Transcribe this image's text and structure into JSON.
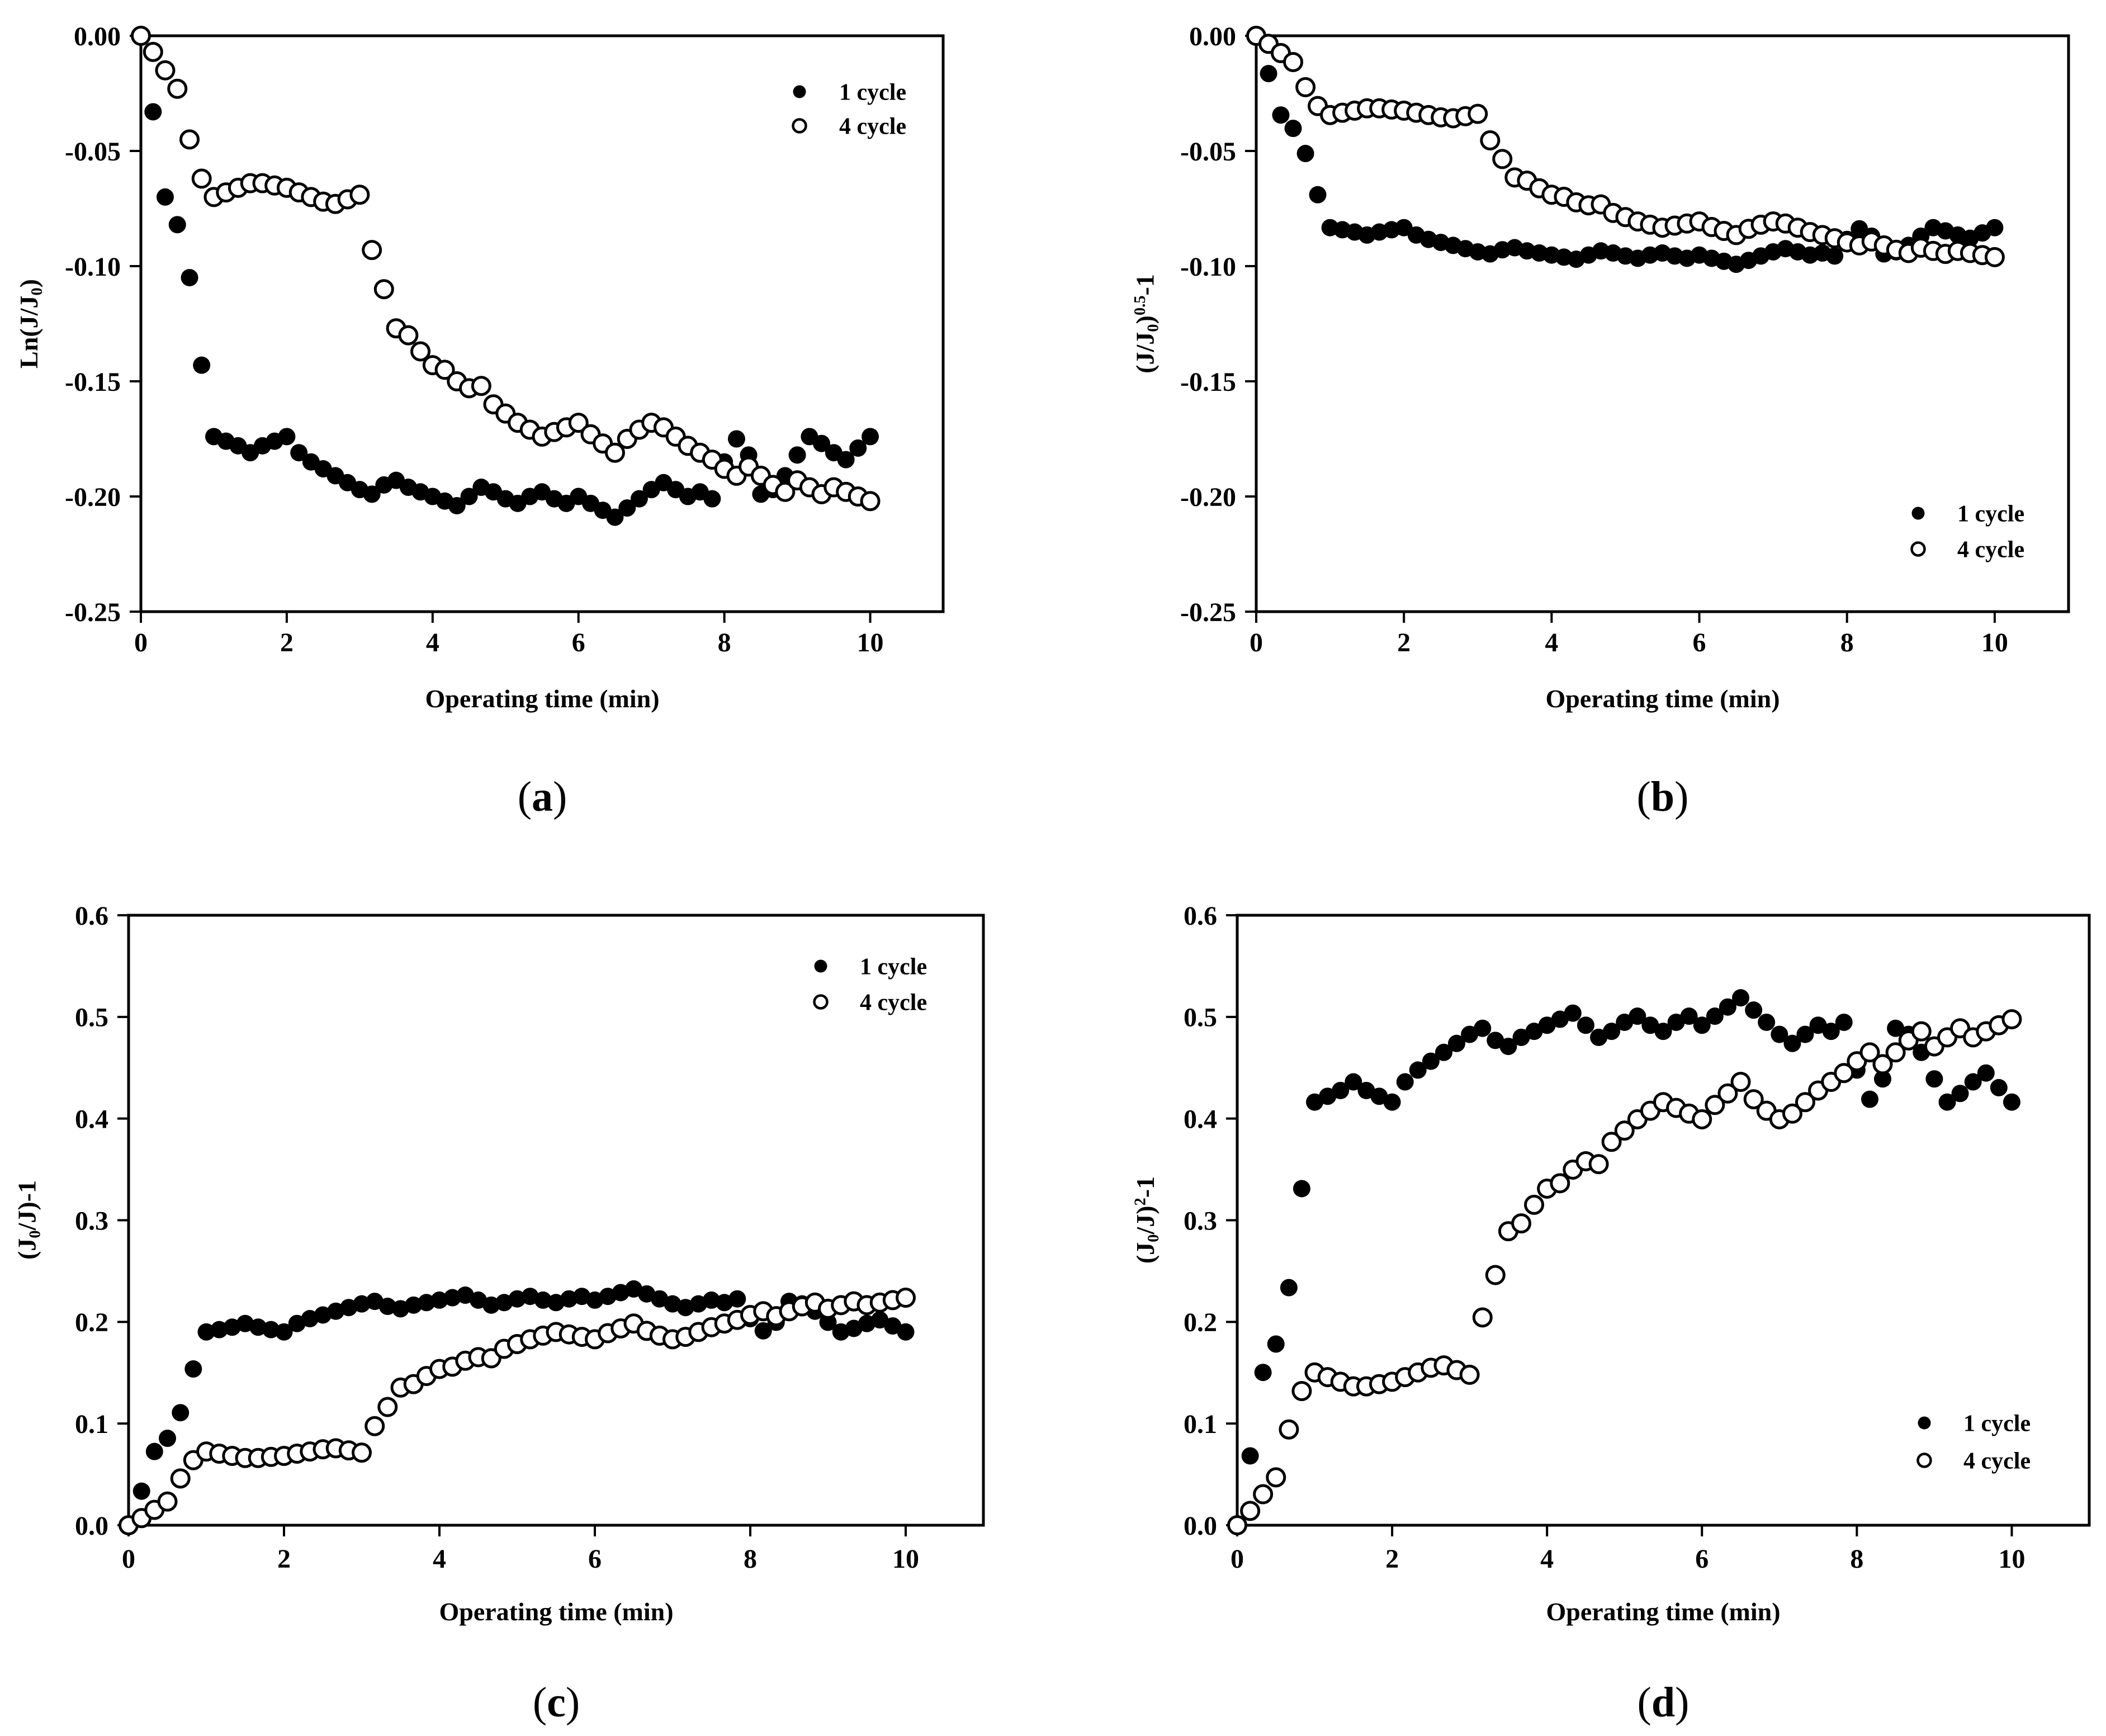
{
  "figure": {
    "colors": {
      "ink": "#000000",
      "paper": "#ffffff"
    },
    "marker_icons": {
      "filled-circle": "●",
      "open-circle": "○"
    }
  },
  "chart_data": [
    {
      "id": "a",
      "type": "scatter",
      "panel_label": {
        "open": "(",
        "char": "a",
        "close": ")"
      },
      "xlabel": "Operating time (min)",
      "ylabel_text": "Ln(J/J0)",
      "ylabel_segments": [
        {
          "k": "t",
          "v": "Ln(J/J"
        },
        {
          "k": "sub",
          "v": "0"
        },
        {
          "k": "t",
          "v": ")"
        }
      ],
      "xlim": [
        0,
        11
      ],
      "ylim": [
        -0.25,
        0
      ],
      "x_tick_labels": [
        "0",
        "2",
        "4",
        "6",
        "8",
        "10"
      ],
      "x_tick_values": [
        0,
        2,
        4,
        6,
        8,
        10
      ],
      "y_tick_labels": [
        "0.00",
        "-0.05",
        "-0.10",
        "-0.15",
        "-0.20",
        "-0.25"
      ],
      "y_tick_values": [
        0,
        -0.05,
        -0.1,
        -0.15,
        -0.2,
        -0.25
      ],
      "grid": false,
      "legend": {
        "position": "top-right",
        "items": [
          {
            "label": "1 cycle",
            "marker": "filled-circle"
          },
          {
            "label": "4 cycle",
            "marker": "open-circle"
          }
        ]
      },
      "x": [
        0,
        0.167,
        0.333,
        0.5,
        0.667,
        0.833,
        1,
        1.167,
        1.333,
        1.5,
        1.667,
        1.833,
        2,
        2.167,
        2.333,
        2.5,
        2.667,
        2.833,
        3,
        3.167,
        3.333,
        3.5,
        3.667,
        3.833,
        4,
        4.167,
        4.333,
        4.5,
        4.667,
        4.833,
        5,
        5.167,
        5.333,
        5.5,
        5.667,
        5.833,
        6,
        6.167,
        6.333,
        6.5,
        6.667,
        6.833,
        7,
        7.167,
        7.333,
        7.5,
        7.667,
        7.833,
        8,
        8.167,
        8.333,
        8.5,
        8.667,
        8.833,
        9,
        9.167,
        9.333,
        9.5,
        9.667,
        9.833,
        10
      ],
      "series": [
        {
          "name": "1 cycle",
          "marker": "filled-circle",
          "y": [
            0,
            -0.033,
            -0.07,
            -0.082,
            -0.105,
            -0.143,
            -0.174,
            -0.176,
            -0.178,
            -0.181,
            -0.178,
            -0.176,
            -0.174,
            -0.181,
            -0.185,
            -0.188,
            -0.191,
            -0.194,
            -0.197,
            -0.199,
            -0.195,
            -0.193,
            -0.196,
            -0.198,
            -0.2,
            -0.202,
            -0.204,
            -0.2,
            -0.196,
            -0.198,
            -0.201,
            -0.203,
            -0.2,
            -0.198,
            -0.201,
            -0.203,
            -0.2,
            -0.203,
            -0.206,
            -0.209,
            -0.205,
            -0.201,
            -0.197,
            -0.194,
            -0.197,
            -0.2,
            -0.198,
            -0.201,
            -0.185,
            -0.175,
            -0.182,
            -0.199,
            -0.197,
            -0.191,
            -0.182,
            -0.174,
            -0.177,
            -0.181,
            -0.184,
            -0.179,
            -0.174
          ]
        },
        {
          "name": "4 cycle",
          "marker": "open-circle",
          "y": [
            0,
            -0.007,
            -0.015,
            -0.023,
            -0.045,
            -0.062,
            -0.07,
            -0.068,
            -0.066,
            -0.064,
            -0.064,
            -0.065,
            -0.066,
            -0.068,
            -0.07,
            -0.072,
            -0.073,
            -0.071,
            -0.069,
            -0.093,
            -0.11,
            -0.127,
            -0.13,
            -0.137,
            -0.143,
            -0.145,
            -0.15,
            -0.153,
            -0.152,
            -0.16,
            -0.164,
            -0.168,
            -0.171,
            -0.174,
            -0.172,
            -0.17,
            -0.168,
            -0.173,
            -0.177,
            -0.181,
            -0.175,
            -0.171,
            -0.168,
            -0.17,
            -0.174,
            -0.178,
            -0.181,
            -0.184,
            -0.188,
            -0.191,
            -0.187,
            -0.191,
            -0.195,
            -0.198,
            -0.193,
            -0.196,
            -0.199,
            -0.196,
            -0.198,
            -0.2,
            -0.202
          ]
        }
      ]
    },
    {
      "id": "b",
      "type": "scatter",
      "panel_label": {
        "open": "(",
        "char": "b",
        "close": ")"
      },
      "xlabel": "Operating time (min)",
      "ylabel_text": "(J/J0)^0.5-1",
      "ylabel_segments": [
        {
          "k": "t",
          "v": "(J/J"
        },
        {
          "k": "sub",
          "v": "0"
        },
        {
          "k": "t",
          "v": ")"
        },
        {
          "k": "sup",
          "v": "0.5"
        },
        {
          "k": "t",
          "v": "-1"
        }
      ],
      "xlim": [
        0,
        11
      ],
      "ylim": [
        -0.25,
        0
      ],
      "x_tick_labels": [
        "0",
        "2",
        "4",
        "6",
        "8",
        "10"
      ],
      "x_tick_values": [
        0,
        2,
        4,
        6,
        8,
        10
      ],
      "y_tick_labels": [
        "0.00",
        "-0.05",
        "-0.10",
        "-0.15",
        "-0.20",
        "-0.25"
      ],
      "y_tick_values": [
        0,
        -0.05,
        -0.1,
        -0.15,
        -0.2,
        -0.25
      ],
      "grid": false,
      "legend": {
        "position": "bottom-right",
        "items": [
          {
            "label": "1 cycle",
            "marker": "filled-circle"
          },
          {
            "label": "4 cycle",
            "marker": "open-circle"
          }
        ]
      },
      "x": [
        0,
        0.167,
        0.333,
        0.5,
        0.667,
        0.833,
        1,
        1.167,
        1.333,
        1.5,
        1.667,
        1.833,
        2,
        2.167,
        2.333,
        2.5,
        2.667,
        2.833,
        3,
        3.167,
        3.333,
        3.5,
        3.667,
        3.833,
        4,
        4.167,
        4.333,
        4.5,
        4.667,
        4.833,
        5,
        5.167,
        5.333,
        5.5,
        5.667,
        5.833,
        6,
        6.167,
        6.333,
        6.5,
        6.667,
        6.833,
        7,
        7.167,
        7.333,
        7.5,
        7.667,
        7.833,
        8,
        8.167,
        8.333,
        8.5,
        8.667,
        8.833,
        9,
        9.167,
        9.333,
        9.5,
        9.667,
        9.833,
        10
      ],
      "series": [
        {
          "name": "1 cycle",
          "marker": "filled-circle",
          "y": [
            0,
            -0.0164,
            -0.0344,
            -0.0402,
            -0.0511,
            -0.069,
            -0.0833,
            -0.0842,
            -0.0852,
            -0.0865,
            -0.0852,
            -0.0842,
            -0.0833,
            -0.0865,
            -0.0884,
            -0.0897,
            -0.091,
            -0.0924,
            -0.0938,
            -0.0947,
            -0.0929,
            -0.092,
            -0.0934,
            -0.0943,
            -0.0952,
            -0.0961,
            -0.097,
            -0.0952,
            -0.0934,
            -0.0943,
            -0.0956,
            -0.0966,
            -0.0952,
            -0.0943,
            -0.0956,
            -0.0966,
            -0.0952,
            -0.0966,
            -0.0979,
            -0.0992,
            -0.0975,
            -0.0956,
            -0.0938,
            -0.0924,
            -0.0938,
            -0.0952,
            -0.0943,
            -0.0956,
            -0.0884,
            -0.0838,
            -0.087,
            -0.0947,
            -0.0938,
            -0.091,
            -0.087,
            -0.0833,
            -0.0847,
            -0.0865,
            -0.0879,
            -0.0856,
            -0.0833
          ]
        },
        {
          "name": "4 cycle",
          "marker": "open-circle",
          "y": [
            0,
            -0.0035,
            -0.0075,
            -0.0114,
            -0.0223,
            -0.0305,
            -0.0344,
            -0.0334,
            -0.0325,
            -0.0315,
            -0.0315,
            -0.032,
            -0.0325,
            -0.0334,
            -0.0344,
            -0.0354,
            -0.0358,
            -0.0349,
            -0.0339,
            -0.0454,
            -0.0535,
            -0.0615,
            -0.0629,
            -0.0662,
            -0.069,
            -0.0699,
            -0.0723,
            -0.0736,
            -0.0732,
            -0.0769,
            -0.0787,
            -0.0806,
            -0.082,
            -0.0833,
            -0.0824,
            -0.0815,
            -0.0806,
            -0.083,
            -0.0847,
            -0.0865,
            -0.0838,
            -0.082,
            -0.0806,
            -0.0815,
            -0.0833,
            -0.0852,
            -0.0865,
            -0.0879,
            -0.0897,
            -0.091,
            -0.0893,
            -0.091,
            -0.0929,
            -0.0943,
            -0.092,
            -0.0934,
            -0.0947,
            -0.0934,
            -0.0943,
            -0.0952,
            -0.0961
          ]
        }
      ]
    },
    {
      "id": "c",
      "type": "scatter",
      "panel_label": {
        "open": "(",
        "char": "c",
        "close": ")"
      },
      "xlabel": "Operating time (min)",
      "ylabel_text": "(J0/J)-1",
      "ylabel_segments": [
        {
          "k": "t",
          "v": "(J"
        },
        {
          "k": "sub",
          "v": "0"
        },
        {
          "k": "t",
          "v": "/J)-1"
        }
      ],
      "xlim": [
        0,
        11
      ],
      "ylim": [
        0,
        0.6
      ],
      "x_tick_labels": [
        "0",
        "2",
        "4",
        "6",
        "8",
        "10"
      ],
      "x_tick_values": [
        0,
        2,
        4,
        6,
        8,
        10
      ],
      "y_tick_labels": [
        "0.0",
        "0.1",
        "0.2",
        "0.3",
        "0.4",
        "0.5",
        "0.6"
      ],
      "y_tick_values": [
        0,
        0.1,
        0.2,
        0.3,
        0.4,
        0.5,
        0.6
      ],
      "grid": false,
      "legend": {
        "position": "top-right",
        "items": [
          {
            "label": "1 cycle",
            "marker": "filled-circle"
          },
          {
            "label": "4 cycle",
            "marker": "open-circle"
          }
        ]
      },
      "x": [
        0,
        0.167,
        0.333,
        0.5,
        0.667,
        0.833,
        1,
        1.167,
        1.333,
        1.5,
        1.667,
        1.833,
        2,
        2.167,
        2.333,
        2.5,
        2.667,
        2.833,
        3,
        3.167,
        3.333,
        3.5,
        3.667,
        3.833,
        4,
        4.167,
        4.333,
        4.5,
        4.667,
        4.833,
        5,
        5.167,
        5.333,
        5.5,
        5.667,
        5.833,
        6,
        6.167,
        6.333,
        6.5,
        6.667,
        6.833,
        7,
        7.167,
        7.333,
        7.5,
        7.667,
        7.833,
        8,
        8.167,
        8.333,
        8.5,
        8.667,
        8.833,
        9,
        9.167,
        9.333,
        9.5,
        9.667,
        9.833,
        10
      ],
      "series": [
        {
          "name": "1 cycle",
          "marker": "filled-circle",
          "y": [
            0,
            0.0335,
            0.0725,
            0.0855,
            0.1107,
            0.1537,
            0.1901,
            0.1924,
            0.1948,
            0.1984,
            0.1948,
            0.1924,
            0.1901,
            0.1984,
            0.2032,
            0.2068,
            0.2105,
            0.2141,
            0.2177,
            0.2202,
            0.2153,
            0.2129,
            0.2165,
            0.219,
            0.2214,
            0.2238,
            0.2263,
            0.2214,
            0.2165,
            0.219,
            0.2226,
            0.2251,
            0.2214,
            0.219,
            0.2226,
            0.2251,
            0.2214,
            0.2251,
            0.2288,
            0.2324,
            0.2275,
            0.2226,
            0.2177,
            0.2141,
            0.2177,
            0.2214,
            0.219,
            0.2226,
            0.2032,
            0.1912,
            0.1996,
            0.2202,
            0.2177,
            0.2105,
            0.1996,
            0.1901,
            0.1936,
            0.1984,
            0.202,
            0.196,
            0.1901
          ]
        },
        {
          "name": "4 cycle",
          "marker": "open-circle",
          "y": [
            0,
            0.007,
            0.0151,
            0.0233,
            0.046,
            0.064,
            0.0725,
            0.0704,
            0.0682,
            0.0661,
            0.0661,
            0.0672,
            0.0682,
            0.0704,
            0.0725,
            0.0747,
            0.0757,
            0.0736,
            0.0714,
            0.0975,
            0.1163,
            0.1354,
            0.1388,
            0.1468,
            0.1537,
            0.156,
            0.1618,
            0.1653,
            0.1642,
            0.1735,
            0.1782,
            0.1829,
            0.1865,
            0.1901,
            0.1877,
            0.1853,
            0.1829,
            0.1889,
            0.1936,
            0.1984,
            0.1912,
            0.1865,
            0.1829,
            0.1853,
            0.1901,
            0.1948,
            0.1984,
            0.202,
            0.2068,
            0.2105,
            0.2056,
            0.2105,
            0.2153,
            0.219,
            0.2129,
            0.2165,
            0.2202,
            0.2165,
            0.219,
            0.2214,
            0.2238
          ]
        }
      ]
    },
    {
      "id": "d",
      "type": "scatter",
      "panel_label": {
        "open": "(",
        "char": "d",
        "close": ")"
      },
      "xlabel": "Operating time (min)",
      "ylabel_text": "(J0/J)^2-1",
      "ylabel_segments": [
        {
          "k": "t",
          "v": "(J"
        },
        {
          "k": "sub",
          "v": "0"
        },
        {
          "k": "t",
          "v": "/J)"
        },
        {
          "k": "sup",
          "v": "2"
        },
        {
          "k": "t",
          "v": "-1"
        }
      ],
      "xlim": [
        0,
        11
      ],
      "ylim": [
        0,
        0.6
      ],
      "x_tick_labels": [
        "0",
        "2",
        "4",
        "6",
        "8",
        "10"
      ],
      "x_tick_values": [
        0,
        2,
        4,
        6,
        8,
        10
      ],
      "y_tick_labels": [
        "0.0",
        "0.1",
        "0.2",
        "0.3",
        "0.4",
        "0.5",
        "0.6"
      ],
      "y_tick_values": [
        0,
        0.1,
        0.2,
        0.3,
        0.4,
        0.5,
        0.6
      ],
      "grid": false,
      "legend": {
        "position": "bottom-right",
        "items": [
          {
            "label": "1 cycle",
            "marker": "filled-circle"
          },
          {
            "label": "4 cycle",
            "marker": "open-circle"
          }
        ]
      },
      "x": [
        0,
        0.167,
        0.333,
        0.5,
        0.667,
        0.833,
        1,
        1.167,
        1.333,
        1.5,
        1.667,
        1.833,
        2,
        2.167,
        2.333,
        2.5,
        2.667,
        2.833,
        3,
        3.167,
        3.333,
        3.5,
        3.667,
        3.833,
        4,
        4.167,
        4.333,
        4.5,
        4.667,
        4.833,
        5,
        5.167,
        5.333,
        5.5,
        5.667,
        5.833,
        6,
        6.167,
        6.333,
        6.5,
        6.667,
        6.833,
        7,
        7.167,
        7.333,
        7.5,
        7.667,
        7.833,
        8,
        8.167,
        8.333,
        8.5,
        8.667,
        8.833,
        9,
        9.167,
        9.333,
        9.5,
        9.667,
        9.833,
        10
      ],
      "series": [
        {
          "name": "1 cycle",
          "marker": "filled-circle",
          "y": [
            0,
            0.0682,
            0.1503,
            0.1782,
            0.2337,
            0.3311,
            0.4162,
            0.4219,
            0.4276,
            0.4361,
            0.4276,
            0.4219,
            0.4162,
            0.4361,
            0.4477,
            0.4564,
            0.4651,
            0.4739,
            0.4828,
            0.4888,
            0.4769,
            0.471,
            0.4799,
            0.4858,
            0.4918,
            0.4977,
            0.5037,
            0.4918,
            0.4799,
            0.4858,
            0.4947,
            0.5007,
            0.4918,
            0.4858,
            0.4947,
            0.5007,
            0.4918,
            0.5007,
            0.5097,
            0.5188,
            0.5067,
            0.4947,
            0.4828,
            0.4739,
            0.4828,
            0.4918,
            0.4858,
            0.4947,
            0.4477,
            0.419,
            0.439,
            0.4888,
            0.4828,
            0.4651,
            0.439,
            0.4162,
            0.4247,
            0.4361,
            0.4448,
            0.4304,
            0.4162
          ]
        },
        {
          "name": "4 cycle",
          "marker": "open-circle",
          "y": [
            0,
            0.0141,
            0.0305,
            0.0471,
            0.0942,
            0.132,
            0.1503,
            0.1457,
            0.1411,
            0.1366,
            0.1366,
            0.1388,
            0.1411,
            0.1457,
            0.1503,
            0.1549,
            0.1572,
            0.1526,
            0.148,
            0.2044,
            0.2461,
            0.2892,
            0.2969,
            0.3152,
            0.3311,
            0.3364,
            0.3498,
            0.358,
            0.3552,
            0.3771,
            0.3882,
            0.3993,
            0.4077,
            0.4162,
            0.4105,
            0.4049,
            0.3993,
            0.4134,
            0.4247,
            0.4361,
            0.419,
            0.4077,
            0.3993,
            0.4049,
            0.4162,
            0.4276,
            0.4361,
            0.4448,
            0.4564,
            0.4651,
            0.4535,
            0.4651,
            0.4769,
            0.4858,
            0.471,
            0.4799,
            0.4888,
            0.4799,
            0.4858,
            0.4918,
            0.4977
          ]
        }
      ]
    }
  ]
}
